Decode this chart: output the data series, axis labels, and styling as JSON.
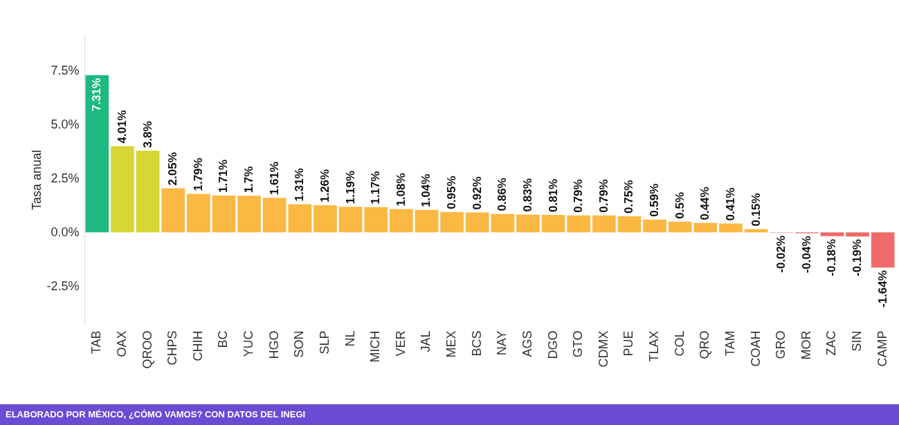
{
  "chart_data": {
    "type": "bar",
    "ylabel": "Tasa anual",
    "categories": [
      "TAB",
      "OAX",
      "QROO",
      "CHPS",
      "CHIH",
      "BC",
      "YUC",
      "HGO",
      "SON",
      "SLP",
      "NL",
      "MICH",
      "VER",
      "JAL",
      "MEX",
      "BCS",
      "NAY",
      "AGS",
      "DGO",
      "GTO",
      "CDMX",
      "PUE",
      "TLAX",
      "COL",
      "QRO",
      "TAM",
      "COAH",
      "GRO",
      "MOR",
      "ZAC",
      "SIN",
      "CAMP"
    ],
    "values": [
      7.31,
      4.01,
      3.8,
      2.05,
      1.79,
      1.71,
      1.7,
      1.61,
      1.31,
      1.26,
      1.19,
      1.17,
      1.08,
      1.04,
      0.95,
      0.92,
      0.86,
      0.83,
      0.81,
      0.79,
      0.79,
      0.75,
      0.59,
      0.5,
      0.44,
      0.41,
      0.15,
      -0.02,
      -0.04,
      -0.18,
      -0.19,
      -1.64
    ],
    "value_labels": [
      "7.31%",
      "4.01%",
      "3.8%",
      "2.05%",
      "1.79%",
      "1.71%",
      "1.7%",
      "1.61%",
      "1.31%",
      "1.26%",
      "1.19%",
      "1.17%",
      "1.08%",
      "1.04%",
      "0.95%",
      "0.92%",
      "0.86%",
      "0.83%",
      "0.81%",
      "0.79%",
      "0.79%",
      "0.75%",
      "0.59%",
      "0.5%",
      "0.44%",
      "0.41%",
      "0.15%",
      "-0.02%",
      "-0.04%",
      "-0.18%",
      "-0.19%",
      "-1.64%"
    ],
    "colors": [
      "#1db981",
      "#d8d636",
      "#d8d636",
      "#fbb843",
      "#fbb843",
      "#fbb843",
      "#fbb843",
      "#fbb843",
      "#fbb843",
      "#fbb843",
      "#fbb843",
      "#fbb843",
      "#fbb843",
      "#fbb843",
      "#fbb843",
      "#fbb843",
      "#fbb843",
      "#fbb843",
      "#fbb843",
      "#fbb843",
      "#fbb843",
      "#fbb843",
      "#fbb843",
      "#fbb843",
      "#fbb843",
      "#fbb843",
      "#fbb843",
      "#f06a6a",
      "#f06a6a",
      "#f06a6a",
      "#f06a6a",
      "#f06a6a"
    ],
    "ylim": [
      -4.3,
      9.2
    ],
    "yticks": [
      {
        "value": -2.5,
        "label": "-2.5%"
      },
      {
        "value": 0,
        "label": "0.0%"
      },
      {
        "value": 2.5,
        "label": "2.5%"
      },
      {
        "value": 5,
        "label": "5.0%"
      },
      {
        "value": 7.5,
        "label": "7.5%"
      }
    ],
    "grid": false,
    "annotations": [
      "ELABORADO POR MÉXICO, ¿CÓMO VAMOS? CON DATOS DEL INEGI"
    ]
  }
}
